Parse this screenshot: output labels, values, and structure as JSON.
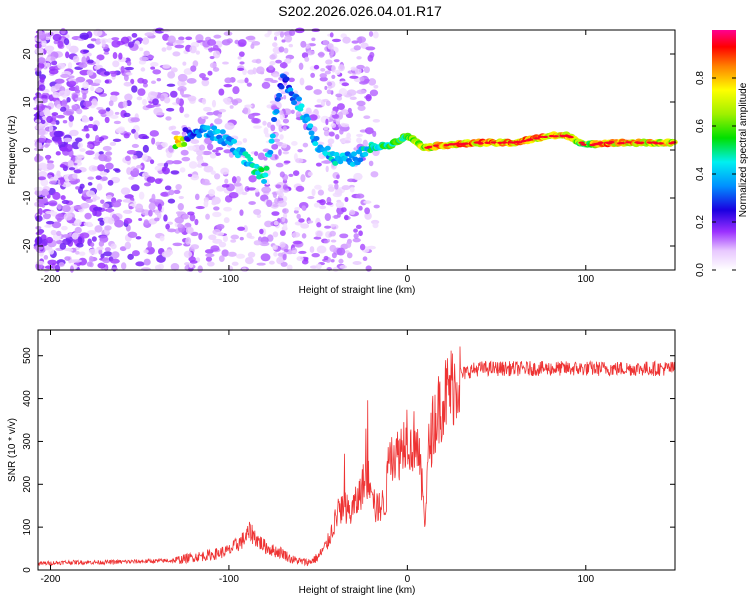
{
  "title": "S202.2026.026.04.01.R17",
  "chart_data": [
    {
      "type": "heatmap",
      "xlabel": "Height of straight line (km)",
      "ylabel": "Frequency (Hz)",
      "xlim": [
        -207,
        150
      ],
      "ylim": [
        -25,
        25
      ],
      "xticks": [
        -200,
        -100,
        0,
        100
      ],
      "yticks": [
        20,
        10,
        0,
        -10,
        -20
      ],
      "colorbar": {
        "label": "Normalized spectral amplitude",
        "range": [
          0.0,
          1.0
        ],
        "ticks": [
          0.0,
          0.2,
          0.4,
          0.6,
          0.8
        ],
        "tick_labels": [
          "0.0",
          "0.2",
          "0.4",
          "0.6",
          "0.8"
        ],
        "stops": [
          {
            "v": 0.0,
            "color": "#ffffff"
          },
          {
            "v": 0.08,
            "color": "#e8c8ff"
          },
          {
            "v": 0.16,
            "color": "#9b30ff"
          },
          {
            "v": 0.25,
            "color": "#1a00e0"
          },
          {
            "v": 0.35,
            "color": "#0090ff"
          },
          {
            "v": 0.45,
            "color": "#00f0f0"
          },
          {
            "v": 0.55,
            "color": "#00e000"
          },
          {
            "v": 0.65,
            "color": "#a0f000"
          },
          {
            "v": 0.75,
            "color": "#ffff00"
          },
          {
            "v": 0.85,
            "color": "#ff8000"
          },
          {
            "v": 0.93,
            "color": "#ff0000"
          },
          {
            "v": 1.0,
            "color": "#ff0090"
          }
        ]
      },
      "signal_track": [
        {
          "h": -125,
          "f": 3,
          "a": 0.28
        },
        {
          "h": -112,
          "f": 4,
          "a": 0.4
        },
        {
          "h": -100,
          "f": 2,
          "a": 0.4
        },
        {
          "h": -90,
          "f": -2,
          "a": 0.45
        },
        {
          "h": -80,
          "f": -6,
          "a": 0.5
        },
        {
          "h": -70,
          "f": 15,
          "a": 0.3
        },
        {
          "h": -60,
          "f": 9,
          "a": 0.45
        },
        {
          "h": -50,
          "f": 1,
          "a": 0.4
        },
        {
          "h": -40,
          "f": -2,
          "a": 0.45
        },
        {
          "h": -30,
          "f": -2,
          "a": 0.4
        },
        {
          "h": -20,
          "f": 0.5,
          "a": 0.5
        },
        {
          "h": -10,
          "f": 1,
          "a": 0.55
        },
        {
          "h": 0,
          "f": 3,
          "a": 0.6
        },
        {
          "h": 10,
          "f": 0.5,
          "a": 0.75
        },
        {
          "h": 20,
          "f": 1,
          "a": 0.85
        },
        {
          "h": 40,
          "f": 1.5,
          "a": 0.85
        },
        {
          "h": 60,
          "f": 1.5,
          "a": 0.85
        },
        {
          "h": 80,
          "f": 3,
          "a": 0.85
        },
        {
          "h": 90,
          "f": 3,
          "a": 0.8
        },
        {
          "h": 100,
          "f": 1,
          "a": 0.6
        },
        {
          "h": 110,
          "f": 1.5,
          "a": 0.85
        },
        {
          "h": 130,
          "f": 1.5,
          "a": 0.8
        },
        {
          "h": 150,
          "f": 1.5,
          "a": 0.75
        }
      ]
    },
    {
      "type": "line",
      "xlabel": "Height of straight line (km)",
      "ylabel": "SNR (10 * v/v)",
      "xlim": [
        -207,
        150
      ],
      "ylim": [
        0,
        560
      ],
      "xticks": [
        -200,
        -100,
        0,
        100
      ],
      "yticks": [
        0,
        100,
        200,
        300,
        400,
        500
      ],
      "color": "#ee3333",
      "series": [
        {
          "name": "SNR",
          "x": [
            -207,
            -190,
            -170,
            -150,
            -130,
            -120,
            -110,
            -100,
            -92,
            -88,
            -84,
            -80,
            -75,
            -70,
            -65,
            -60,
            -55,
            -50,
            -45,
            -40,
            -38,
            -35,
            -32,
            -30,
            -28,
            -25,
            -22,
            -20,
            -18,
            -15,
            -12,
            -10,
            -8,
            -5,
            -2,
            0,
            2,
            5,
            8,
            10,
            12,
            15,
            18,
            20,
            25,
            30,
            35,
            40,
            50,
            60,
            70,
            80,
            90,
            100,
            110,
            120,
            130,
            140,
            150
          ],
          "y": [
            15,
            18,
            18,
            20,
            22,
            30,
            35,
            45,
            70,
            90,
            70,
            55,
            45,
            40,
            25,
            20,
            18,
            30,
            60,
            120,
            140,
            150,
            130,
            150,
            160,
            200,
            210,
            220,
            140,
            150,
            160,
            300,
            270,
            270,
            300,
            330,
            280,
            320,
            200,
            120,
            280,
            350,
            380,
            400,
            430,
            455,
            465,
            470,
            470,
            470,
            470,
            470,
            470,
            470,
            470,
            470,
            470,
            470,
            470
          ]
        }
      ]
    }
  ]
}
